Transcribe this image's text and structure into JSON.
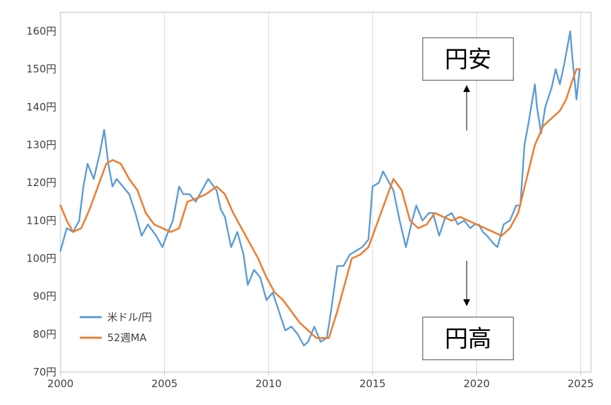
{
  "chart_data": {
    "type": "line",
    "title": "",
    "xlabel": "",
    "ylabel": "",
    "xlim": [
      2000,
      2025.5
    ],
    "ylim": [
      70,
      165
    ],
    "grid": "vertical",
    "x_ticks": [
      2000,
      2005,
      2010,
      2015,
      2020,
      2025
    ],
    "x_tick_labels": [
      "2000",
      "2005",
      "2010",
      "2015",
      "2020",
      "2025"
    ],
    "y_ticks": [
      70,
      80,
      90,
      100,
      110,
      120,
      130,
      140,
      150,
      160
    ],
    "y_tick_labels": [
      "70円",
      "80円",
      "90円",
      "100円",
      "110円",
      "120円",
      "130円",
      "140円",
      "150円",
      "160円"
    ],
    "legend_position": "lower-left",
    "series": [
      {
        "name": "米ドル/円",
        "color": "#5B9BD5",
        "x": [
          2000.0,
          2000.3,
          2000.6,
          2000.9,
          2001.1,
          2001.3,
          2001.6,
          2001.9,
          2002.1,
          2002.3,
          2002.5,
          2002.7,
          2003.0,
          2003.3,
          2003.6,
          2003.9,
          2004.2,
          2004.6,
          2004.9,
          2005.1,
          2005.4,
          2005.7,
          2005.9,
          2006.2,
          2006.5,
          2006.8,
          2007.1,
          2007.5,
          2007.7,
          2007.9,
          2008.2,
          2008.5,
          2008.8,
          2009.0,
          2009.3,
          2009.6,
          2009.9,
          2010.2,
          2010.5,
          2010.8,
          2011.1,
          2011.4,
          2011.7,
          2011.9,
          2012.2,
          2012.5,
          2012.8,
          2013.0,
          2013.3,
          2013.6,
          2013.9,
          2014.2,
          2014.5,
          2014.8,
          2015.0,
          2015.3,
          2015.5,
          2015.8,
          2016.0,
          2016.3,
          2016.6,
          2016.9,
          2017.1,
          2017.4,
          2017.7,
          2017.9,
          2018.2,
          2018.5,
          2018.8,
          2019.1,
          2019.4,
          2019.7,
          2019.9,
          2020.1,
          2020.3,
          2020.5,
          2020.8,
          2021.0,
          2021.3,
          2021.6,
          2021.9,
          2022.1,
          2022.3,
          2022.5,
          2022.8,
          2022.9,
          2023.1,
          2023.3,
          2023.6,
          2023.8,
          2024.0,
          2024.2,
          2024.5,
          2024.6,
          2024.8,
          2024.95
        ],
        "y": [
          102,
          108,
          107,
          110,
          119,
          125,
          121,
          128,
          134,
          125,
          119,
          121,
          119,
          117,
          112,
          106,
          109,
          106,
          103,
          106,
          110,
          119,
          117,
          117,
          115,
          118,
          121,
          118,
          113,
          111,
          103,
          107,
          101,
          93,
          97,
          95,
          89,
          91,
          86,
          81,
          82,
          80,
          77,
          78,
          82,
          78,
          79,
          86,
          98,
          98,
          101,
          102,
          103,
          105,
          119,
          120,
          123,
          120,
          118,
          110,
          103,
          110,
          114,
          110,
          112,
          112,
          106,
          111,
          112,
          109,
          110,
          108,
          109,
          109,
          107,
          106,
          104,
          103,
          109,
          110,
          114,
          114,
          130,
          136,
          146,
          140,
          133,
          140,
          145,
          150,
          146,
          151,
          160,
          153,
          142,
          150
        ],
        "labels_source": "approximate readings from axes"
      },
      {
        "name": "52週MA",
        "color": "#ED7D31",
        "x": [
          2000.0,
          2000.3,
          2000.6,
          2001.0,
          2001.4,
          2001.8,
          2002.2,
          2002.5,
          2002.9,
          2003.3,
          2003.7,
          2004.1,
          2004.5,
          2004.9,
          2005.3,
          2005.7,
          2006.1,
          2006.6,
          2007.0,
          2007.5,
          2007.9,
          2008.3,
          2008.7,
          2009.1,
          2009.5,
          2009.9,
          2010.3,
          2010.7,
          2011.1,
          2011.5,
          2011.9,
          2012.3,
          2012.6,
          2012.9,
          2013.3,
          2013.7,
          2014.0,
          2014.4,
          2014.8,
          2015.2,
          2015.6,
          2016.0,
          2016.4,
          2016.8,
          2017.2,
          2017.6,
          2018.0,
          2018.4,
          2018.8,
          2019.2,
          2019.6,
          2020.0,
          2020.4,
          2020.8,
          2021.2,
          2021.6,
          2022.0,
          2022.4,
          2022.8,
          2023.2,
          2023.6,
          2024.0,
          2024.3,
          2024.6,
          2024.8,
          2024.95
        ],
        "y": [
          114,
          110,
          107,
          108,
          113,
          119,
          125,
          126,
          125,
          121,
          118,
          112,
          109,
          108,
          107,
          108,
          115,
          116,
          117,
          119,
          117,
          112,
          108,
          104,
          100,
          95,
          91,
          89,
          86,
          83,
          81,
          79,
          79,
          79,
          86,
          94,
          100,
          101,
          103,
          109,
          115,
          121,
          118,
          110,
          108,
          109,
          112,
          111,
          110,
          111,
          110,
          109,
          108,
          107,
          106,
          108,
          112,
          121,
          130,
          135,
          137,
          139,
          142,
          147,
          150,
          150
        ],
        "labels_source": "approximate readings from axes"
      }
    ],
    "annotations": [
      {
        "text": "円安",
        "direction": "up"
      },
      {
        "text": "円高",
        "direction": "down"
      }
    ]
  }
}
